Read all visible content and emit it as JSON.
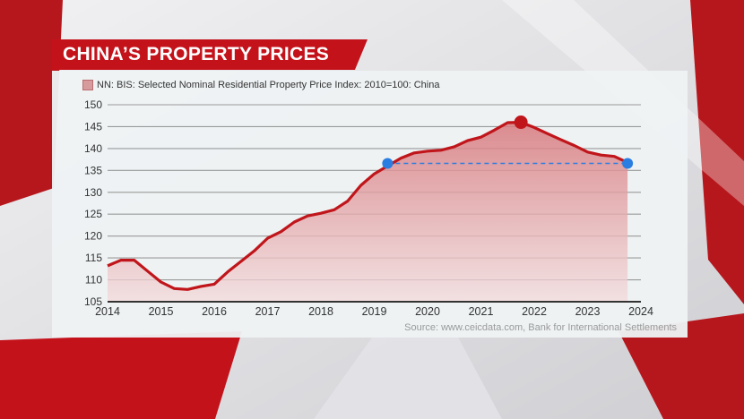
{
  "title": "CHINA’S PROPERTY PRICES",
  "source": "Source: www.ceicdata.com, Bank for International Settlements",
  "colors": {
    "brand_red": "#c4121b",
    "line": "#c0161b",
    "area": "#d98a8d",
    "peak_marker": "#c0161b",
    "compare_marker": "#2a7de1"
  },
  "chart_data": {
    "type": "area",
    "legend": [
      "NN: BIS: Selected Nominal Residential Property Price Index: 2010=100: China"
    ],
    "x_tick_labels": [
      "2014",
      "2015",
      "2016",
      "2017",
      "2018",
      "2019",
      "2020",
      "2021",
      "2022",
      "2023",
      "2024"
    ],
    "y_tick_labels": [
      "105",
      "110",
      "115",
      "120",
      "125",
      "130",
      "135",
      "140",
      "145",
      "150"
    ],
    "xlim": [
      2014,
      2024
    ],
    "ylim": [
      105,
      150
    ],
    "grid": true,
    "legend_position": "top-left",
    "series": [
      {
        "name": "NN: BIS: Selected Nominal Residential Property Price Index: 2010=100: China",
        "x": [
          2014.0,
          2014.25,
          2014.5,
          2014.75,
          2015.0,
          2015.25,
          2015.5,
          2015.75,
          2016.0,
          2016.25,
          2016.5,
          2016.75,
          2017.0,
          2017.25,
          2017.5,
          2017.75,
          2018.0,
          2018.25,
          2018.5,
          2018.75,
          2019.0,
          2019.25,
          2019.5,
          2019.75,
          2020.0,
          2020.25,
          2020.5,
          2020.75,
          2021.0,
          2021.25,
          2021.5,
          2021.75,
          2022.0,
          2022.25,
          2022.5,
          2022.75,
          2023.0,
          2023.25,
          2023.5,
          2023.75
        ],
        "y": [
          113.2,
          114.5,
          114.5,
          112.0,
          109.5,
          108.0,
          107.8,
          108.5,
          109.0,
          111.8,
          114.2,
          116.6,
          119.5,
          121.0,
          123.2,
          124.6,
          125.2,
          126.0,
          128.0,
          131.6,
          134.2,
          136.0,
          137.8,
          139.0,
          139.4,
          139.6,
          140.4,
          141.8,
          142.6,
          144.2,
          145.9,
          146.0,
          144.8,
          143.4,
          142.0,
          140.7,
          139.2,
          138.5,
          138.2,
          136.8
        ]
      }
    ],
    "annotations": [
      {
        "type": "peak_marker",
        "x": 2021.75,
        "y": 146.0
      },
      {
        "type": "reference_line",
        "from_x": 2019.25,
        "to_x": 2023.75,
        "y": 136.6
      }
    ]
  }
}
